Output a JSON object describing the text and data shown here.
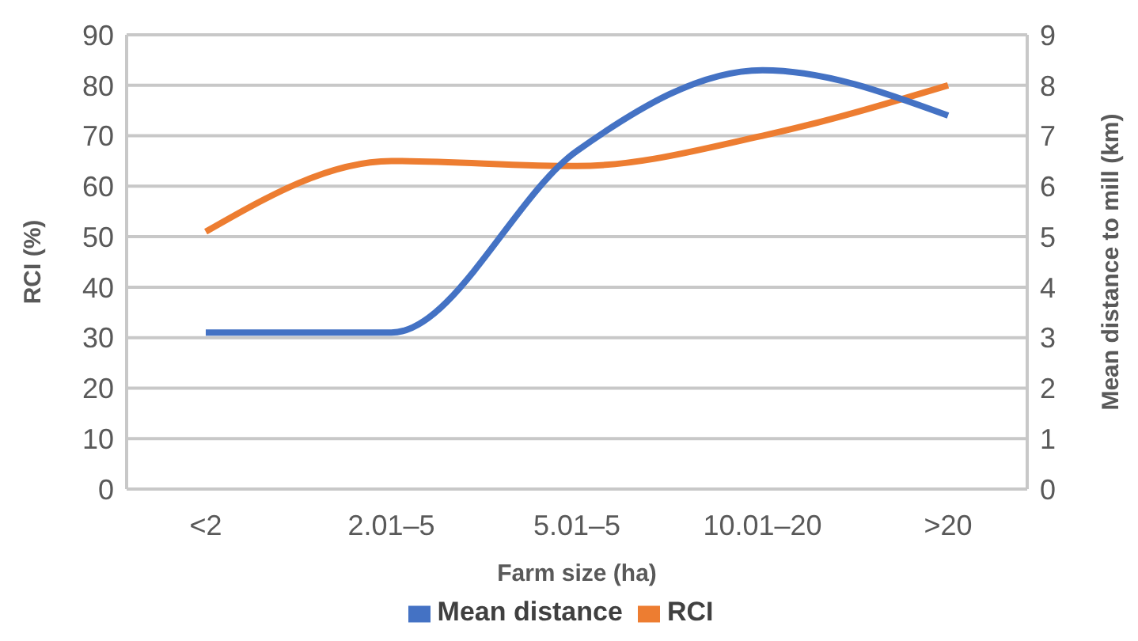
{
  "chart_data": {
    "type": "line",
    "xlabel": "Farm size (ha)",
    "ylabel": "RCI (%)",
    "y2label": "Mean distance to mill (km)",
    "categories": [
      "<2",
      "2.01–5",
      "5.01–5",
      "10.01–20",
      ">20"
    ],
    "series": [
      {
        "name": "RCI",
        "color": "#ed7d31",
        "values": [
          51,
          65,
          64,
          70,
          80
        ]
      },
      {
        "name": "Mean distance",
        "color": "#4472c4",
        "axis": "y2",
        "values": [
          3.1,
          3.1,
          6.7,
          8.3,
          7.4
        ]
      }
    ],
    "ylim": [
      0,
      90
    ],
    "yticks": [
      0,
      10,
      20,
      30,
      40,
      50,
      60,
      70,
      80,
      90
    ],
    "y2lim": [
      0,
      9
    ],
    "y2ticks": [
      0,
      1,
      2,
      3,
      4,
      5,
      6,
      7,
      8,
      9
    ],
    "grid": "y",
    "legend": "bottom",
    "marker": "none",
    "line_style": "solid"
  }
}
